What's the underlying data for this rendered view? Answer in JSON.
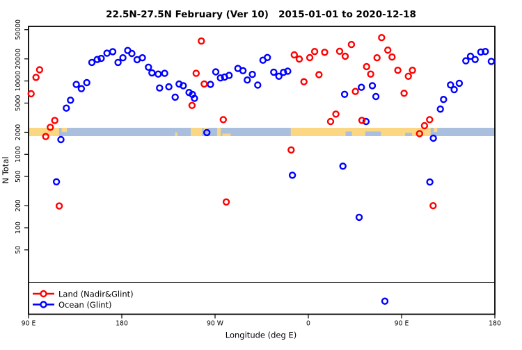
{
  "chart_data": {
    "type": "scatter",
    "title": "22.5N-27.5N February (Ver 10)   2015-01-01 to 2020-12-18",
    "xlabel": "Longitude (deg E)",
    "ylabel": "N Total",
    "x_axis": {
      "min": 90,
      "max": 540,
      "ticks": [
        {
          "value": 90,
          "label": "90 E"
        },
        {
          "value": 180,
          "label": "180"
        },
        {
          "value": 270,
          "label": "90 W"
        },
        {
          "value": 360,
          "label": "0"
        },
        {
          "value": 450,
          "label": "90 E"
        },
        {
          "value": 540,
          "label": "180"
        }
      ]
    },
    "y_axis": {
      "scale": "log",
      "ticks": [
        {
          "value": 50000,
          "label": "50000"
        },
        {
          "value": 20000,
          "label": "20000"
        },
        {
          "value": 10000,
          "label": "10000"
        },
        {
          "value": 5000,
          "label": "5000"
        },
        {
          "value": 2000,
          "label": "2000"
        },
        {
          "value": 1000,
          "label": "1000"
        },
        {
          "value": 500,
          "label": "500"
        },
        {
          "value": 200,
          "label": "200"
        },
        {
          "value": 100,
          "label": "100"
        },
        {
          "value": 50,
          "label": "50"
        }
      ]
    },
    "legend": {
      "position": "bottom-left"
    },
    "series": [
      {
        "name": "Land (Nadir&Glint)",
        "color": "#FF0000",
        "points": [
          [
            92.5,
            6700
          ],
          [
            97.2,
            11200
          ],
          [
            100.7,
            14200
          ],
          [
            106.6,
            1750
          ],
          [
            111.0,
            2340
          ],
          [
            115.3,
            2900
          ],
          [
            119.6,
            198
          ],
          [
            247.8,
            4650
          ],
          [
            251.7,
            12700
          ],
          [
            256.8,
            35000
          ],
          [
            259.5,
            9100
          ],
          [
            277.9,
            2970
          ],
          [
            280.8,
            225
          ],
          [
            343.4,
            1150
          ],
          [
            346.4,
            22700
          ],
          [
            351.3,
            19900
          ],
          [
            355.8,
            9770
          ],
          [
            361.4,
            20800
          ],
          [
            366.1,
            25200
          ],
          [
            370.3,
            12200
          ],
          [
            375.8,
            24600
          ],
          [
            381.5,
            2800
          ],
          [
            386.6,
            3540
          ],
          [
            390.2,
            25400
          ],
          [
            395.6,
            21700
          ],
          [
            401.6,
            31400
          ],
          [
            405.4,
            7200
          ],
          [
            411.7,
            2910
          ],
          [
            416.2,
            15700
          ],
          [
            420.2,
            12400
          ],
          [
            426.3,
            20700
          ],
          [
            430.7,
            38900
          ],
          [
            436.7,
            26300
          ],
          [
            440.8,
            21200
          ],
          [
            446.4,
            14000
          ],
          [
            452.4,
            6800
          ],
          [
            456.5,
            11600
          ],
          [
            460.5,
            14000
          ],
          [
            467.3,
            1920
          ],
          [
            472.1,
            2460
          ],
          [
            477.1,
            2970
          ],
          [
            480.4,
            200
          ]
        ]
      },
      {
        "name": "Ocean (Glint)",
        "color": "#0000FF",
        "points": [
          [
            116.9,
            423
          ],
          [
            121.2,
            1590
          ],
          [
            126.5,
            4270
          ],
          [
            130.5,
            5470
          ],
          [
            136.1,
            8960
          ],
          [
            141.0,
            7850
          ],
          [
            146.2,
            9500
          ],
          [
            151.1,
            17900
          ],
          [
            156.3,
            19600
          ],
          [
            160.1,
            20300
          ],
          [
            165.7,
            23900
          ],
          [
            171.3,
            25100
          ],
          [
            176.4,
            17900
          ],
          [
            181.1,
            20700
          ],
          [
            185.7,
            26000
          ],
          [
            189.7,
            23700
          ],
          [
            194.8,
            19500
          ],
          [
            199.9,
            20700
          ],
          [
            205.7,
            15400
          ],
          [
            209.1,
            12900
          ],
          [
            215.1,
            12400
          ],
          [
            216.5,
            8020
          ],
          [
            221.4,
            12700
          ],
          [
            225.4,
            8330
          ],
          [
            231.5,
            6020
          ],
          [
            235.3,
            9080
          ],
          [
            239.3,
            8630
          ],
          [
            244.9,
            6960
          ],
          [
            248.2,
            6550
          ],
          [
            250.1,
            5800
          ],
          [
            262.1,
            1980
          ],
          [
            265.6,
            8990
          ],
          [
            270.7,
            13300
          ],
          [
            275.2,
            11000
          ],
          [
            279.2,
            11300
          ],
          [
            283.6,
            11900
          ],
          [
            292.0,
            14800
          ],
          [
            296.9,
            13800
          ],
          [
            301.1,
            10300
          ],
          [
            306.0,
            12300
          ],
          [
            311.2,
            8790
          ],
          [
            316.2,
            19200
          ],
          [
            320.5,
            20900
          ],
          [
            326.6,
            13200
          ],
          [
            331.6,
            11600
          ],
          [
            336.0,
            13100
          ],
          [
            340.1,
            13600
          ],
          [
            344.6,
            520
          ],
          [
            393.4,
            690
          ],
          [
            395.0,
            6580
          ],
          [
            409.0,
            139
          ],
          [
            411.2,
            8200
          ],
          [
            415.7,
            2800
          ],
          [
            421.8,
            8630
          ],
          [
            425.2,
            6140
          ],
          [
            433.9,
            10
          ],
          [
            477.3,
            420
          ],
          [
            480.6,
            1660
          ],
          [
            487.4,
            4140
          ],
          [
            490.5,
            5600
          ],
          [
            497.2,
            8830
          ],
          [
            500.8,
            7620
          ],
          [
            505.7,
            9300
          ],
          [
            512.0,
            18800
          ],
          [
            516.5,
            21700
          ],
          [
            521.0,
            19600
          ],
          [
            526.4,
            24800
          ],
          [
            530.8,
            25200
          ],
          [
            536.6,
            18500
          ]
        ]
      }
    ],
    "coast_band": {
      "comment": "horizontal strip showing land/ocean along the 22.5N-27.5N latitude belt",
      "ocean_color": "#A9BFDD",
      "land_color": "#FCD783",
      "value_range": [
        1800,
        2300
      ],
      "land_segments": [
        {
          "from": 90,
          "to": 119.5,
          "part": "full"
        },
        {
          "from": 122,
          "to": 127,
          "part": "top",
          "frac": 0.5
        },
        {
          "from": 231.5,
          "to": 233.5,
          "part": "bottom",
          "frac": 0.45
        },
        {
          "from": 246.5,
          "to": 257.5,
          "part": "full"
        },
        {
          "from": 259,
          "to": 263,
          "part": "top",
          "frac": 0.35
        },
        {
          "from": 272,
          "to": 275.5,
          "part": "full"
        },
        {
          "from": 277,
          "to": 285,
          "part": "bottom",
          "frac": 0.3
        },
        {
          "from": 343,
          "to": 478,
          "part": "full"
        },
        {
          "from": 481,
          "to": 484.5,
          "part": "top",
          "frac": 0.5
        }
      ],
      "ocean_notches": [
        {
          "from": 396,
          "to": 402,
          "frac": 0.55
        },
        {
          "from": 415,
          "to": 430,
          "frac": 0.55
        },
        {
          "from": 453.5,
          "to": 460,
          "frac": 0.4
        }
      ]
    }
  }
}
